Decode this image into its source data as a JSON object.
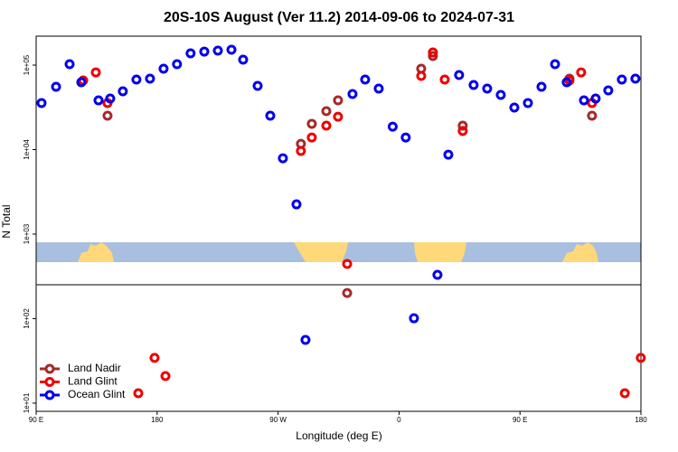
{
  "chart_data": {
    "type": "scatter",
    "title": "20S-10S August (Ver 11.2)   2014-09-06 to 2024-07-31",
    "x_label": "Longitude (deg E)",
    "y_label": "N Total",
    "log_y": true,
    "legend": "lower left",
    "xlim": [
      90,
      540
    ],
    "ylim": [
      8,
      220000
    ],
    "xticks": [
      {
        "value": 90,
        "label": "90 E"
      },
      180,
      {
        "value": 270,
        "label": "90 W"
      },
      {
        "value": 360,
        "label": "0"
      },
      {
        "value": 450,
        "label": "90 E"
      },
      {
        "value": 540,
        "label": "180"
      }
    ],
    "yticks": [
      {
        "value": 10,
        "label": "1e+01"
      },
      {
        "value": 100,
        "label": "1e+02"
      },
      {
        "value": 1000,
        "label": "1e+03"
      },
      {
        "value": 10000,
        "label": "1e+04"
      },
      {
        "value": 100000,
        "label": "1e+05"
      }
    ],
    "series": [
      {
        "name": "Land Nadir",
        "color": "#a52a2a",
        "x": [
          143.1,
          287.0,
          295.1,
          305.9,
          314.6,
          321.4,
          376.5,
          385.2,
          407.4,
          486.8,
          503.6
        ],
        "values": [
          25200,
          11700,
          20200,
          28500,
          38300,
          201,
          90600,
          128000,
          19200,
          69200,
          25200
        ]
      },
      {
        "name": "Land Glint",
        "color": "#ee0000",
        "x": [
          125.0,
          134.4,
          143.1,
          166.0,
          178.1,
          186.2,
          287.0,
          295.1,
          305.9,
          314.6,
          321.4,
          376.5,
          385.2,
          394.0,
          407.4,
          486.8,
          495.5,
          503.6,
          528.0,
          539.9
        ],
        "values": [
          65800,
          82000,
          35600,
          13.1,
          34.3,
          20.9,
          9640,
          13900,
          19200,
          24500,
          444,
          74500,
          141000,
          67400,
          16600,
          65800,
          82000,
          35600,
          13.1,
          34.3
        ]
      },
      {
        "name": "Ocean Glint",
        "color": "#0000ee",
        "x": [
          94.0,
          104.8,
          114.9,
          123.6,
          136.4,
          145.1,
          154.5,
          164.6,
          174.7,
          184.8,
          194.8,
          204.9,
          215.1,
          225.2,
          235.3,
          244.0,
          254.8,
          264.2,
          273.6,
          283.7,
          290.4,
          325.4,
          334.8,
          344.9,
          355.3,
          365.0,
          371.1,
          388.6,
          396.7,
          404.7,
          415.5,
          425.6,
          435.7,
          445.8,
          455.9,
          466.0,
          476.1,
          484.8,
          497.6,
          506.3,
          515.7,
          525.8,
          535.9
        ],
        "values": [
          35600,
          55400,
          102500,
          62700,
          38300,
          40200,
          49000,
          67400,
          69200,
          90600,
          102500,
          137700,
          144500,
          148200,
          152000,
          115900,
          56700,
          25200,
          7900,
          2250,
          56,
          45500,
          67400,
          52700,
          18700,
          13900,
          101,
          330,
          8700,
          76200,
          58200,
          52700,
          44400,
          31400,
          35600,
          55400,
          102500,
          62700,
          38300,
          40200,
          50200,
          67400,
          69200
        ]
      }
    ]
  }
}
